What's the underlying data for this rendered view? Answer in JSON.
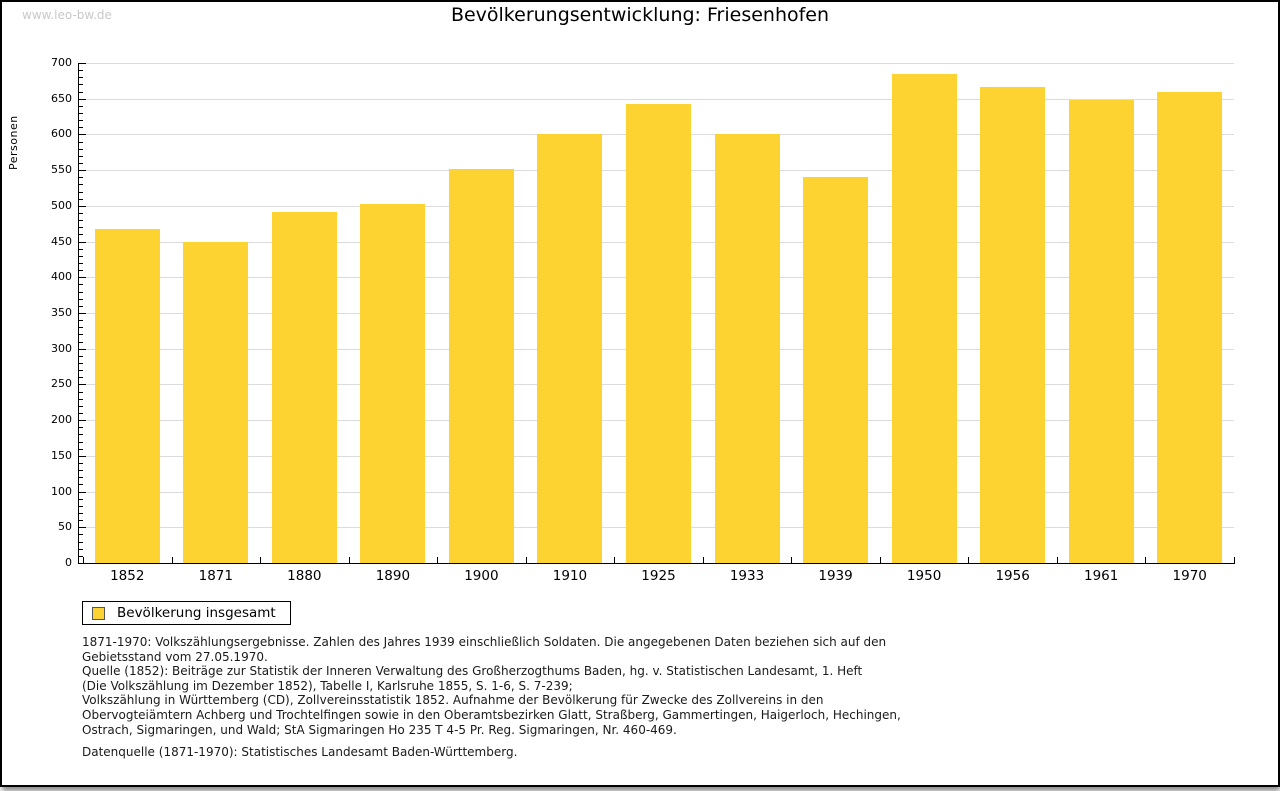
{
  "page": {
    "watermark": "www.leo-bw.de",
    "title": "Bevölkerungsentwicklung: Friesenhofen"
  },
  "chart_data": {
    "type": "bar",
    "title": "Bevölkerungsentwicklung: Friesenhofen",
    "xlabel": "",
    "ylabel": "Personen",
    "ylim": [
      0,
      700
    ],
    "ytick_step": 50,
    "y_minor_tick_step": 10,
    "grid": true,
    "legend_position": "bottom-left",
    "categories": [
      "1852",
      "1871",
      "1880",
      "1890",
      "1900",
      "1910",
      "1925",
      "1933",
      "1939",
      "1950",
      "1956",
      "1961",
      "1970"
    ],
    "series": [
      {
        "name": "Bevölkerung insgesamt",
        "values": [
          467,
          450,
          491,
          502,
          551,
          601,
          642,
          600,
          541,
          684,
          667,
          648,
          659
        ]
      }
    ]
  },
  "legend": {
    "label": "Bevölkerung insgesamt"
  },
  "footer": {
    "lines": [
      "1871-1970: Volkszählungsergebnisse. Zahlen des Jahres 1939 einschließlich Soldaten. Die angegebenen Daten beziehen sich auf den",
      "Gebietsstand vom 27.05.1970.",
      "Quelle (1852): Beiträge zur Statistik der Inneren Verwaltung des Großherzogthums Baden, hg. v. Statistischen Landesamt, 1. Heft",
      "(Die Volkszählung im Dezember 1852), Tabelle I, Karlsruhe 1855, S. 1-6, S. 7-239;",
      "Volkszählung in Württemberg (CD), Zollvereinsstatistik 1852. Aufnahme der Bevölkerung für Zwecke des Zollvereins in den",
      "Obervogteiämtern Achberg und Trochtelfingen sowie in den Oberamtsbezirken Glatt, Straßberg, Gammertingen, Haigerloch, Hechingen,",
      "Ostrach, Sigmaringen, und Wald; StA Sigmaringen Ho 235 T 4-5 Pr. Reg. Sigmaringen, Nr. 460-469."
    ],
    "source": "Datenquelle (1871-1970): Statistisches Landesamt Baden-Württemberg."
  },
  "colors": {
    "bar": "#FCD330",
    "grid": "#DCDCDC",
    "axis": "#000000",
    "watermark": "#C9C9C9",
    "text": "#1A1A1A"
  }
}
